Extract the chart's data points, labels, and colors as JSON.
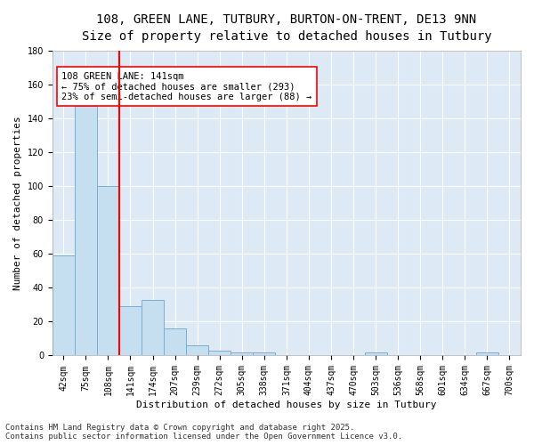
{
  "title_line1": "108, GREEN LANE, TUTBURY, BURTON-ON-TRENT, DE13 9NN",
  "title_line2": "Size of property relative to detached houses in Tutbury",
  "xlabel": "Distribution of detached houses by size in Tutbury",
  "ylabel": "Number of detached properties",
  "categories": [
    "42sqm",
    "75sqm",
    "108sqm",
    "141sqm",
    "174sqm",
    "207sqm",
    "239sqm",
    "272sqm",
    "305sqm",
    "338sqm",
    "371sqm",
    "404sqm",
    "437sqm",
    "470sqm",
    "503sqm",
    "536sqm",
    "568sqm",
    "601sqm",
    "634sqm",
    "667sqm",
    "700sqm"
  ],
  "values": [
    59,
    147,
    100,
    29,
    33,
    16,
    6,
    3,
    2,
    2,
    0,
    0,
    0,
    0,
    2,
    0,
    0,
    0,
    0,
    2,
    0
  ],
  "bar_color": "#c5dff0",
  "bar_edge_color": "#7aaed0",
  "red_line_x": 2.5,
  "annotation_text": "108 GREEN LANE: 141sqm\n← 75% of detached houses are smaller (293)\n23% of semi-detached houses are larger (88) →",
  "annotation_box_color": "white",
  "annotation_box_edge_color": "red",
  "ylim": [
    0,
    180
  ],
  "yticks": [
    0,
    20,
    40,
    60,
    80,
    100,
    120,
    140,
    160,
    180
  ],
  "background_color": "#ddeaf6",
  "grid_color": "white",
  "footer_line1": "Contains HM Land Registry data © Crown copyright and database right 2025.",
  "footer_line2": "Contains public sector information licensed under the Open Government Licence v3.0.",
  "title_fontsize": 10,
  "subtitle_fontsize": 9,
  "axis_label_fontsize": 8,
  "tick_fontsize": 7,
  "annotation_fontsize": 7.5,
  "footer_fontsize": 6.5
}
